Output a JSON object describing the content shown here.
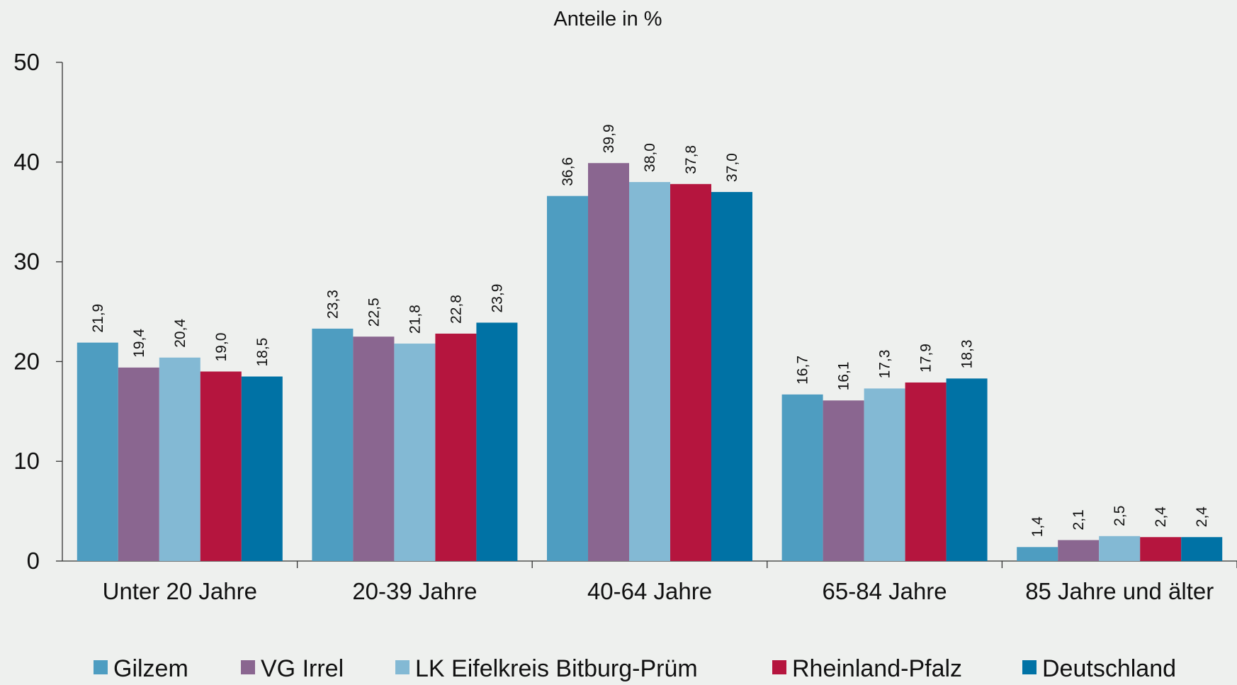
{
  "chart_data": {
    "type": "bar",
    "title": "Anteile in %",
    "categories": [
      "Unter 20 Jahre",
      "20-39 Jahre",
      "40-64 Jahre",
      "65-84 Jahre",
      "85 Jahre und älter"
    ],
    "series": [
      {
        "name": "Gilzem",
        "color": "#4e9dc1",
        "values": [
          21.9,
          23.3,
          36.6,
          16.7,
          1.4
        ],
        "labels": [
          "21,9",
          "23,3",
          "36,6",
          "16,7",
          "1,4"
        ]
      },
      {
        "name": "VG Irrel",
        "color": "#8a6690",
        "values": [
          19.4,
          22.5,
          39.9,
          16.1,
          2.1
        ],
        "labels": [
          "19,4",
          "22,5",
          "39,9",
          "16,1",
          "2,1"
        ]
      },
      {
        "name": "LK Eifelkreis Bitburg-Prüm",
        "color": "#83b9d4",
        "values": [
          20.4,
          21.8,
          38.0,
          17.3,
          2.5
        ],
        "labels": [
          "20,4",
          "21,8",
          "38,0",
          "17,3",
          "2,5"
        ]
      },
      {
        "name": "Rheinland-Pfalz",
        "color": "#b5153e",
        "values": [
          19.0,
          22.8,
          37.8,
          17.9,
          2.4
        ],
        "labels": [
          "19,0",
          "22,8",
          "37,8",
          "17,9",
          "2,4"
        ]
      },
      {
        "name": "Deutschland",
        "color": "#0072a5",
        "values": [
          18.5,
          23.9,
          37.0,
          18.3,
          2.4
        ],
        "labels": [
          "18,5",
          "23,9",
          "37,0",
          "18,3",
          "2,4"
        ]
      }
    ],
    "ylim": [
      0,
      50
    ],
    "yticks": [
      "0",
      "10",
      "20",
      "30",
      "40",
      "50"
    ],
    "grid": false,
    "legend_position": "bottom"
  }
}
